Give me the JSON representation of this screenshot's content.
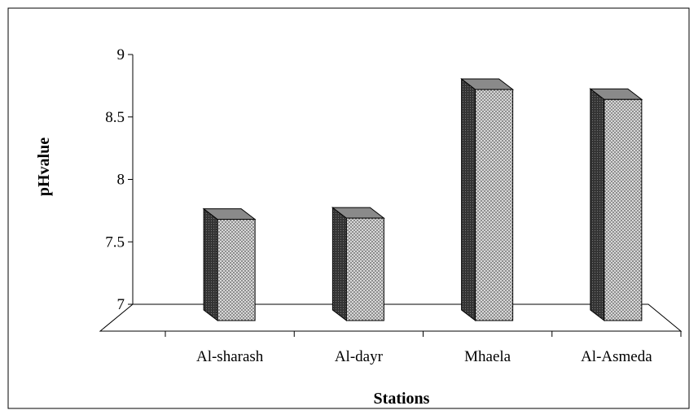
{
  "chart_data": {
    "type": "bar",
    "style": "3d-column",
    "title": "",
    "xlabel": "Stations",
    "ylabel": "pHvalue",
    "categories": [
      "Al-sharash",
      "Al-dayr",
      "Mhaela",
      "Al-Asmeda"
    ],
    "values": [
      7.68,
      7.69,
      8.72,
      8.64
    ],
    "ylim": [
      7,
      9
    ],
    "yticks": [
      "7",
      "7.5",
      "8",
      "8.5",
      "9"
    ],
    "grid": false,
    "legend": "none"
  },
  "colors": {
    "bar_front_pattern": "#bdbdbd",
    "bar_side": "#2e2e2e",
    "bar_top": "#7a7a7a",
    "axis": "#000000"
  }
}
